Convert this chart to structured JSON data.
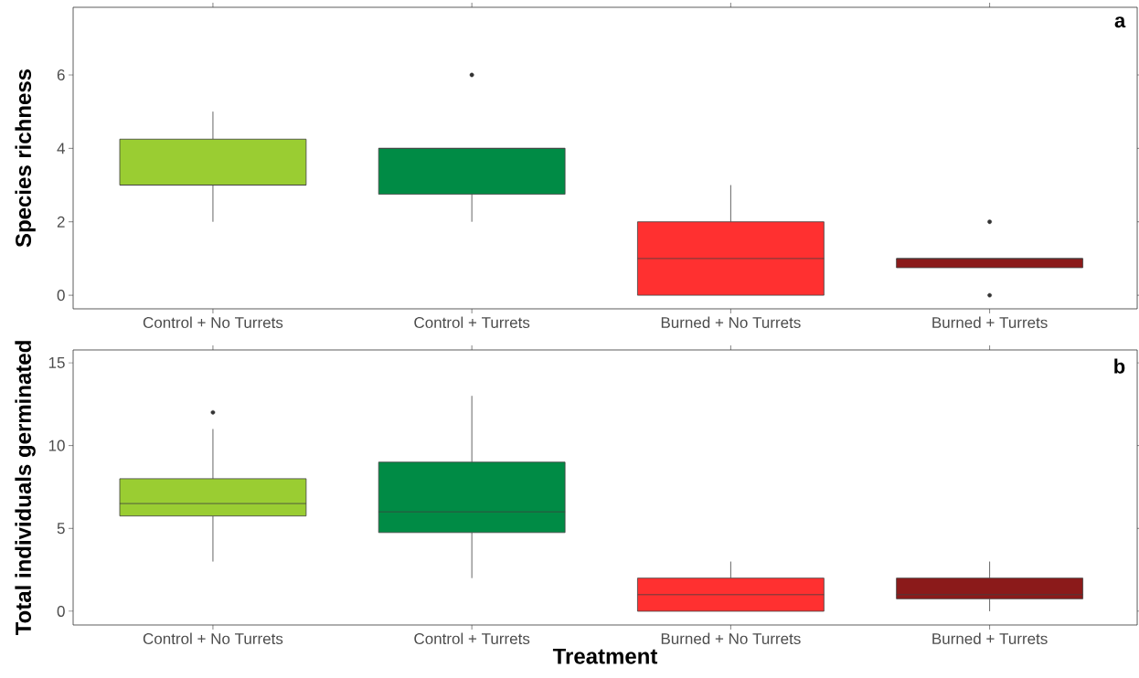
{
  "chart_data": [
    {
      "type": "box",
      "ylabel": "Species richness",
      "categories": [
        "Control + No Turrets",
        "Control + Turrets",
        "Burned + No Turrets",
        "Burned + Turrets"
      ],
      "colors": [
        "#9acd32",
        "#008b45",
        "#ff3030",
        "#8b1a1a"
      ],
      "ylim": [
        -0.37,
        7.84
      ],
      "yticks": [
        0,
        2,
        4,
        6
      ],
      "annotations": [
        "a"
      ],
      "boxes": [
        {
          "low": 2,
          "q1": 3,
          "median": 3,
          "q3": 4.25,
          "high": 5
        },
        {
          "low": 2,
          "q1": 2.75,
          "median": 4,
          "q3": 4,
          "high": 4,
          "outliers": [
            6
          ]
        },
        {
          "low": 0,
          "q1": 0,
          "median": 1,
          "q3": 2,
          "high": 3
        },
        {
          "low": 0.75,
          "q1": 0.75,
          "median": 1,
          "q3": 1,
          "high": 1,
          "outliers": [
            2,
            0
          ]
        }
      ]
    },
    {
      "type": "box",
      "ylabel": "Total individuals germinated",
      "xlabel": "Treatment",
      "categories": [
        "Control + No Turrets",
        "Control + Turrets",
        "Burned + No Turrets",
        "Burned + Turrets"
      ],
      "colors": [
        "#9acd32",
        "#008b45",
        "#ff3030",
        "#8b1a1a"
      ],
      "ylim": [
        -0.83,
        15.77
      ],
      "yticks": [
        0,
        5,
        10,
        15
      ],
      "annotations": [
        "b"
      ],
      "boxes": [
        {
          "low": 3,
          "q1": 5.75,
          "median": 6.5,
          "q3": 8,
          "high": 11,
          "outliers": [
            12
          ]
        },
        {
          "low": 2,
          "q1": 4.75,
          "median": 6,
          "q3": 9,
          "high": 13
        },
        {
          "low": 0,
          "q1": 0,
          "median": 1,
          "q3": 2,
          "high": 3
        },
        {
          "low": 0,
          "q1": 0.75,
          "median": 1,
          "q3": 2,
          "high": 3
        }
      ]
    }
  ]
}
